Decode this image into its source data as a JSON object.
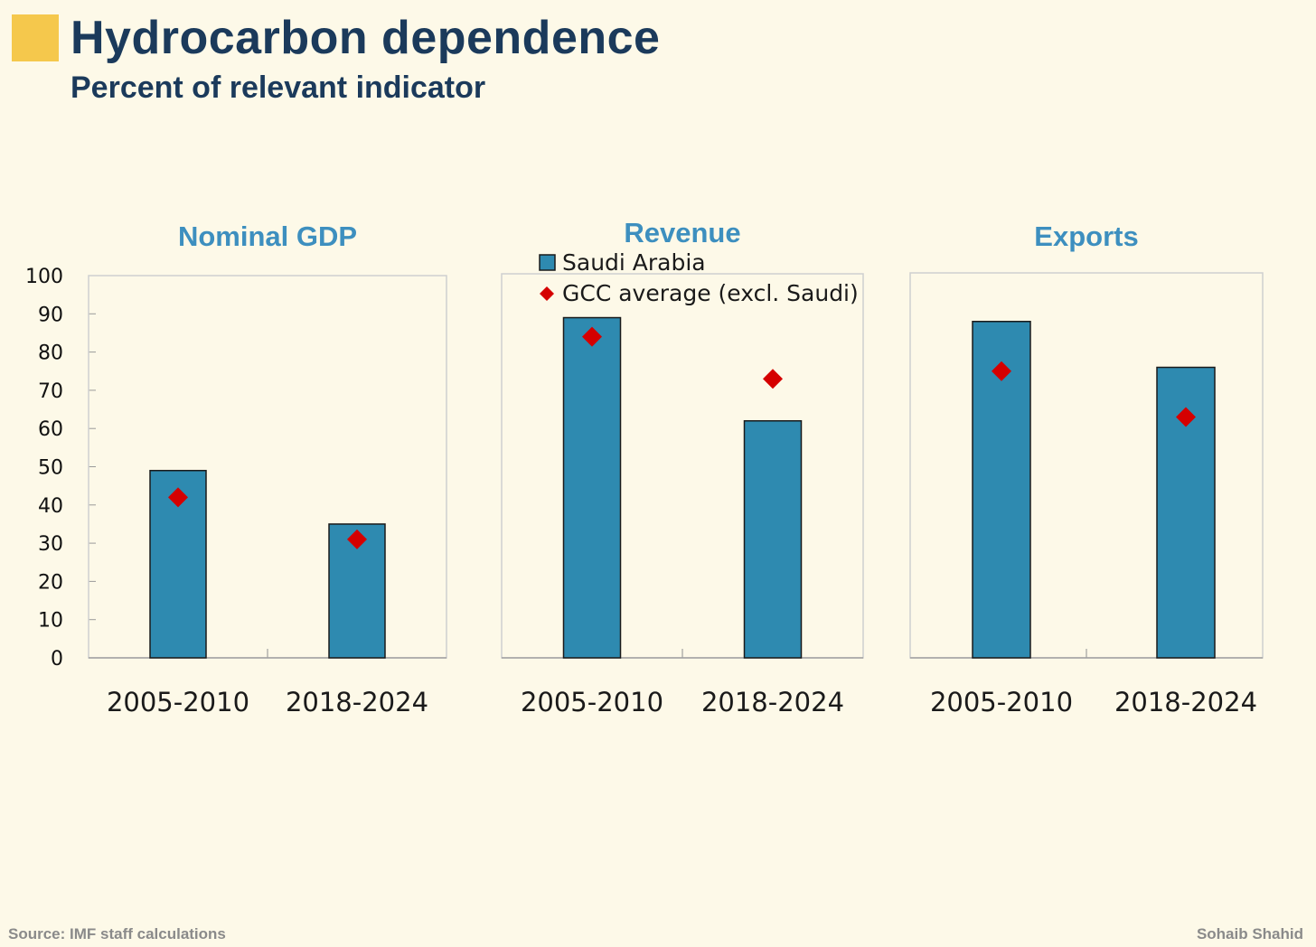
{
  "header": {
    "title": "Hydrocarbon dependence",
    "subtitle": "Percent of relevant indicator"
  },
  "footer": {
    "source": "Source: IMF staff calculations",
    "author": "Sohaib Shahid"
  },
  "colors": {
    "accent": "#f5c84c",
    "title": "#1b3a5b",
    "panel_title": "#3d8fbf",
    "bar_fill": "#2e8ab0",
    "bar_stroke": "#1a1a1a",
    "marker": "#d50000",
    "frame": "#cfcfcf"
  },
  "chart_data": {
    "type": "bar",
    "ylim": [
      0,
      100
    ],
    "yticks": [
      0,
      10,
      20,
      30,
      40,
      50,
      60,
      70,
      80,
      90,
      100
    ],
    "categories": [
      "2005-2010",
      "2018-2024"
    ],
    "legend": {
      "placement": "top-center of Revenue panel",
      "bar_label": "Saudi Arabia",
      "marker_label": "GCC average (excl. Saudi)"
    },
    "panels": [
      {
        "title": "Nominal GDP",
        "saudi": [
          49,
          35
        ],
        "gcc": [
          42,
          31
        ]
      },
      {
        "title": "Revenue",
        "saudi": [
          89,
          62
        ],
        "gcc": [
          84,
          73
        ]
      },
      {
        "title": "Exports",
        "saudi": [
          88,
          76
        ],
        "gcc": [
          75,
          63
        ]
      }
    ]
  }
}
